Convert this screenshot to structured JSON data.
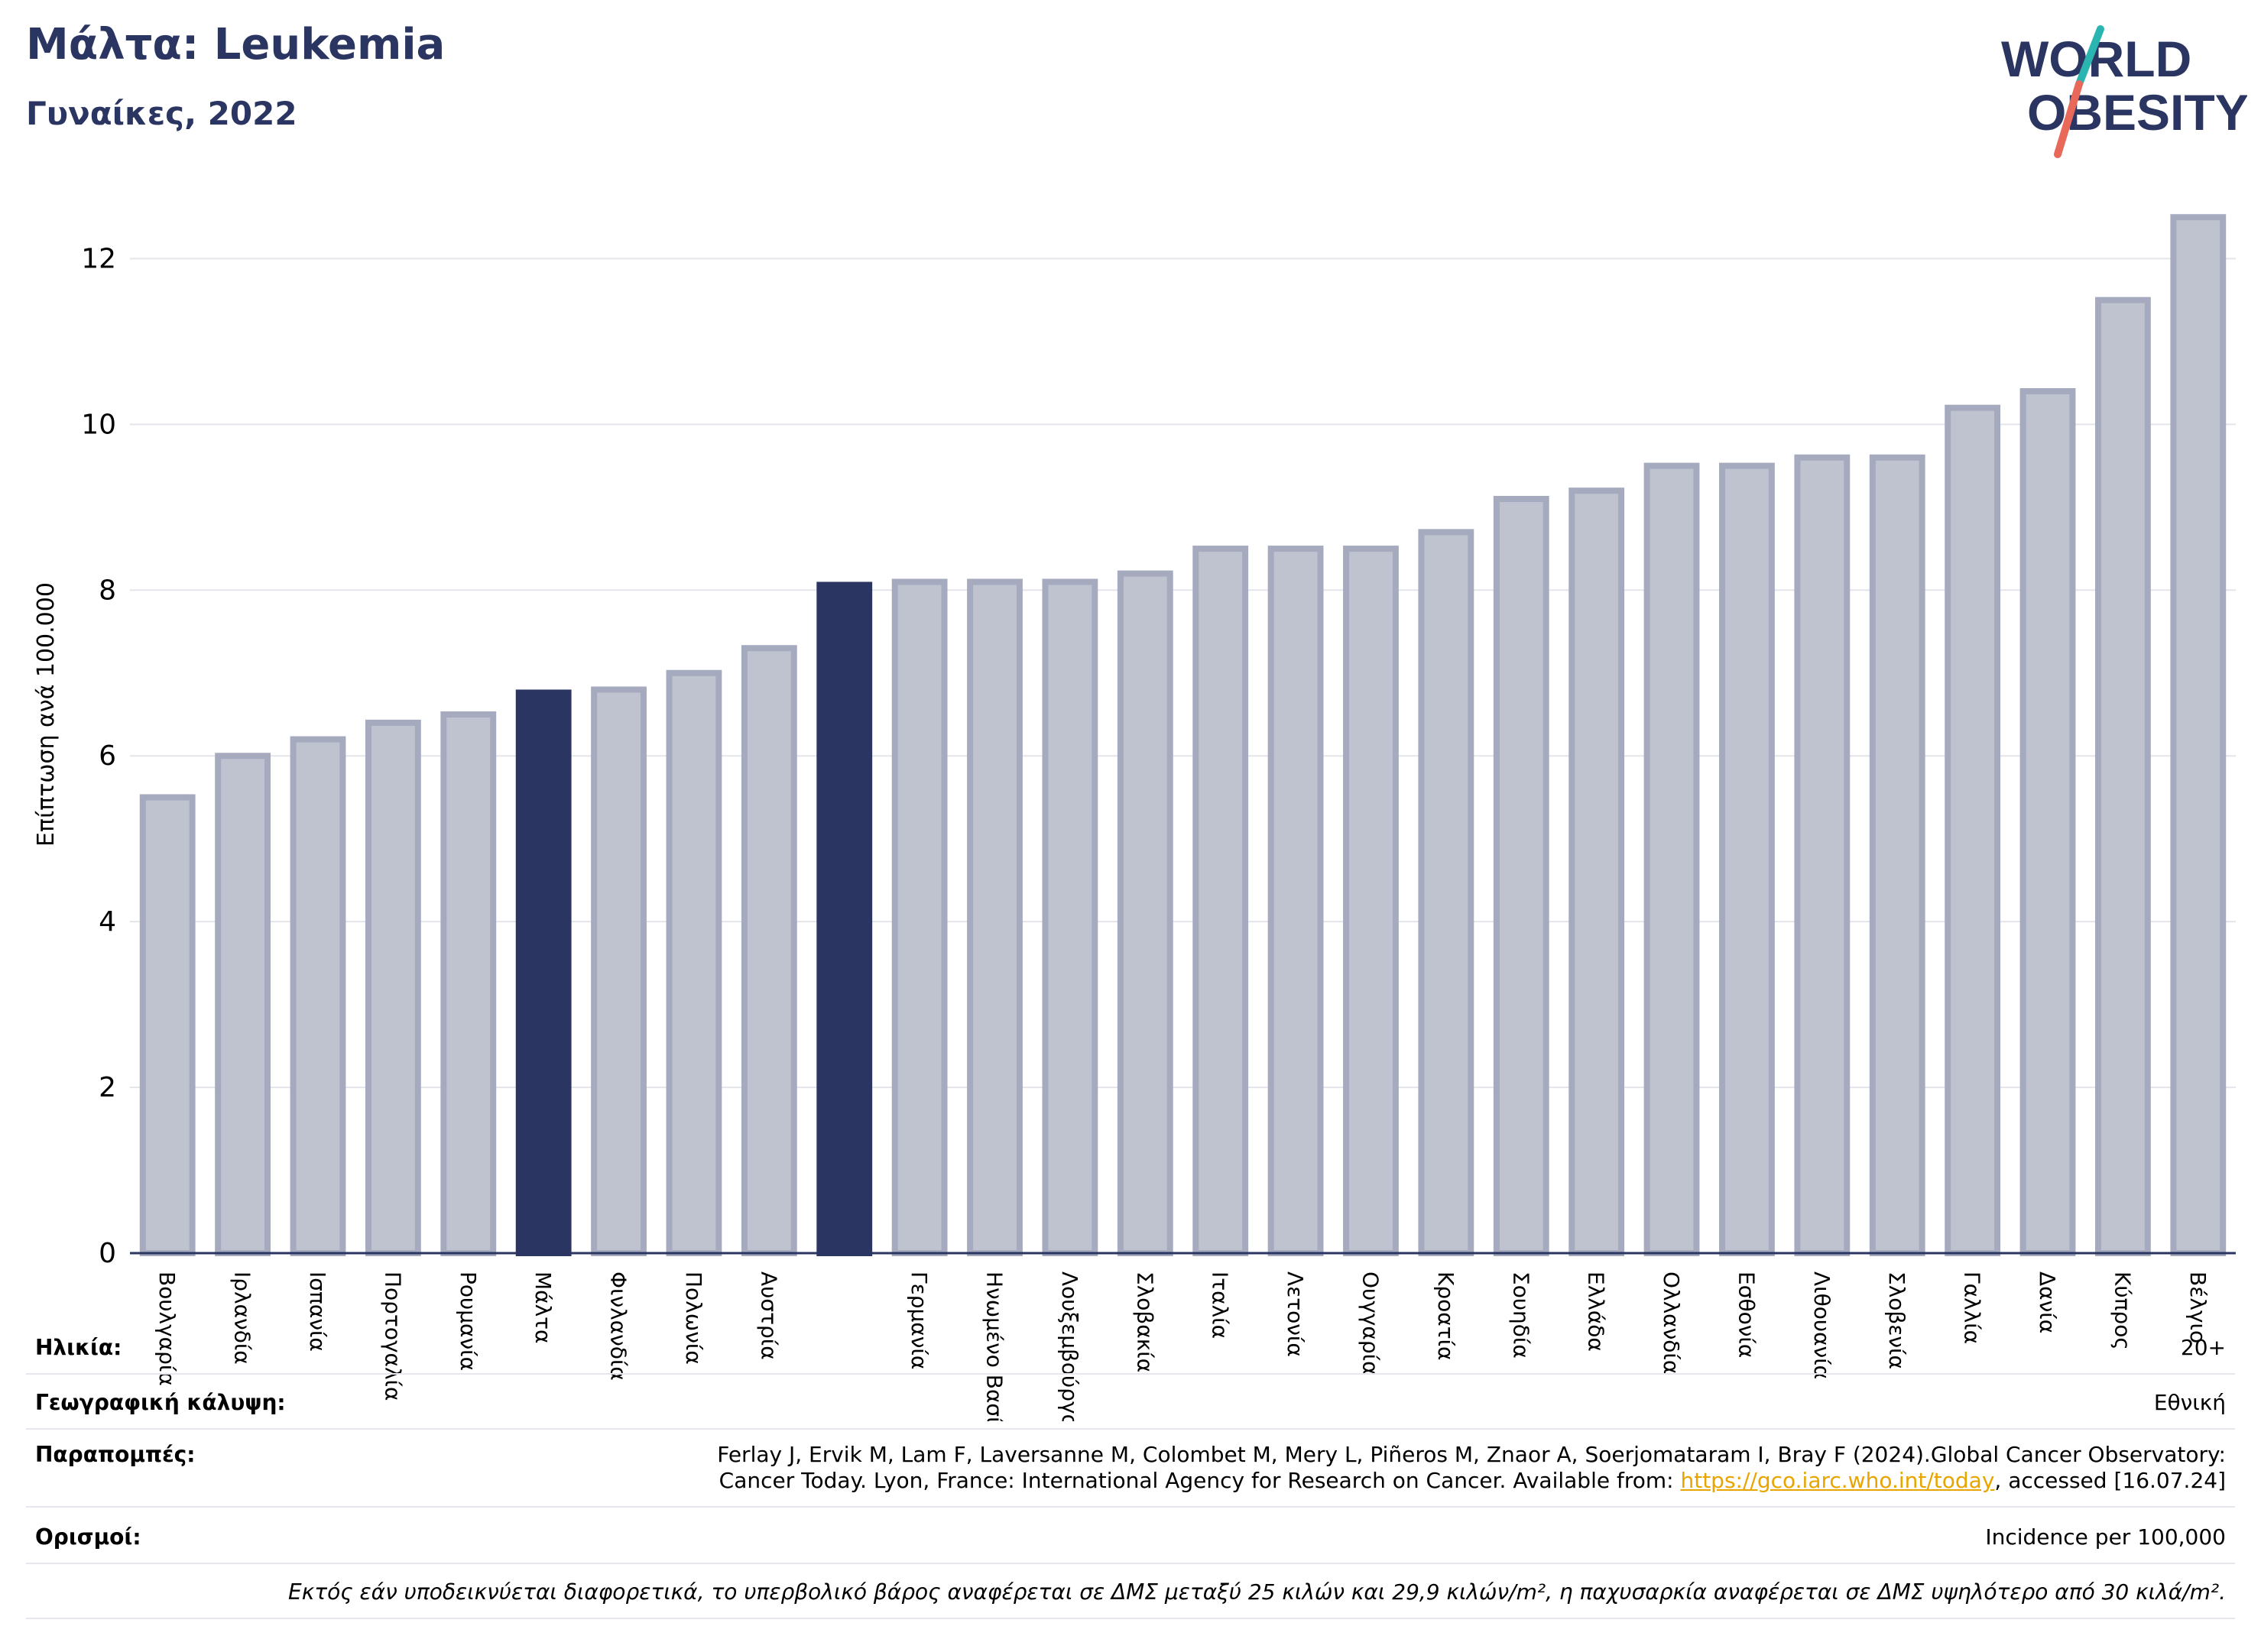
{
  "header": {
    "title": "Μάλτα: Leukemia",
    "subtitle": "Γυναίκες, 2022",
    "logo_line1": "WORLD",
    "logo_line2": "OBESITY"
  },
  "colors": {
    "navy": "#2b3562",
    "bar_fill": "#bfc2cf",
    "bar_stroke": "#a5aabf",
    "logo_teal": "#2bb5b0",
    "logo_coral": "#e8685a"
  },
  "chart_data": {
    "type": "bar",
    "ylabel": "Επίπτωση ανά 100.000",
    "ylim": [
      0,
      13
    ],
    "yticks": [
      0,
      2,
      4,
      6,
      8,
      10,
      12
    ],
    "grid": true,
    "categories": [
      "Βουλγαρία",
      "Ιρλανδία",
      "Ισπανία",
      "Πορτογαλία",
      "Ρουμανία",
      "Μάλτα",
      "Φινλανδία",
      "Πολωνία",
      "Αυστρία",
      "",
      "Γερμανία",
      "Ηνωμένο Βασίλειο",
      "Λουξεμβούργο",
      "Σλοβακία",
      "Ιταλία",
      "Λετονία",
      "Ουγγαρία",
      "Κροατία",
      "Σουηδία",
      "Ελλάδα",
      "Ολλανδία",
      "Εσθονία",
      "Λιθουανία",
      "Σλοβενία",
      "Γαλλία",
      "Δανία",
      "Κύπρος",
      "Βέλγιο"
    ],
    "values": [
      5.5,
      6.0,
      6.2,
      6.4,
      6.5,
      6.8,
      6.8,
      7.0,
      7.3,
      8.1,
      8.1,
      8.1,
      8.1,
      8.2,
      8.5,
      8.5,
      8.5,
      8.7,
      9.1,
      9.2,
      9.5,
      9.5,
      9.6,
      9.6,
      10.2,
      10.4,
      11.5,
      12.5
    ],
    "highlight": [
      5,
      9
    ]
  },
  "info": {
    "age_label": "Ηλικία:",
    "age_value": "20+",
    "coverage_label": "Γεωγραφική κάλυψη:",
    "coverage_value": "Εθνική",
    "refs_label": "Παραπομπές:",
    "refs_line1": "Ferlay J, Ervik M, Lam F, Laversanne M, Colombet M, Mery L, Piñeros M, Znaor A, Soerjomataram I, Bray F (2024).Global Cancer Observatory:",
    "refs_line2_a": "Cancer Today. Lyon, France: International Agency for Research on Cancer. Available from: ",
    "refs_link": "https://gco.iarc.who.int/today",
    "refs_line2_b": ", accessed [16.07.24]",
    "defs_label": "Ορισμοί:",
    "defs_value": "Incidence per 100,000",
    "footnote": "Εκτός εάν υποδεικνύεται διαφορετικά, το υπερβολικό βάρος αναφέρεται σε ΔΜΣ μεταξύ 25 κιλών και 29,9 κιλών/m², η παχυσαρκία αναφέρεται σε ΔΜΣ υψηλότερο από 30 κιλά/m²."
  }
}
